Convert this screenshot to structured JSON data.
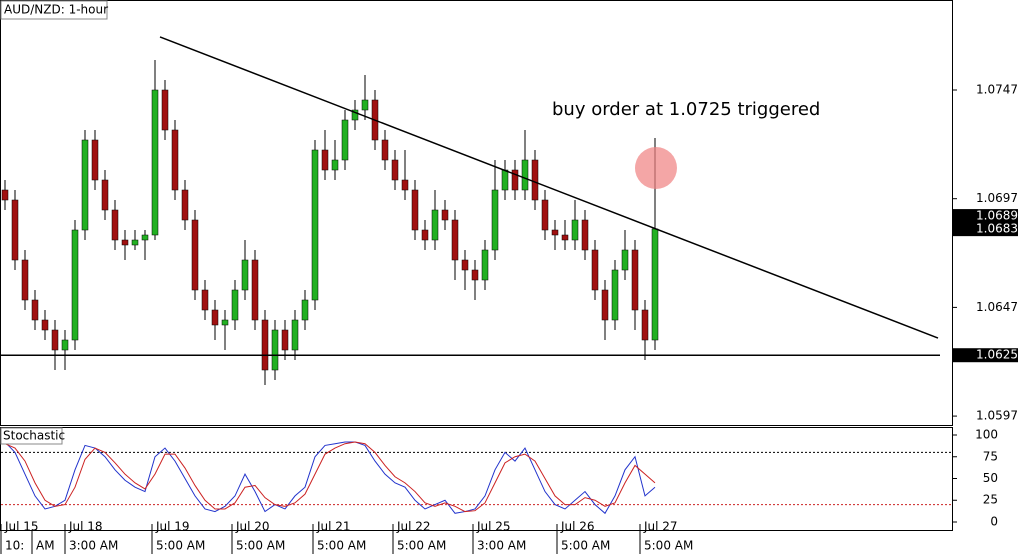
{
  "chart_data": {
    "type": "candlestick",
    "title": "AUD/NZD: 1-hour",
    "annotation": "buy order at 1.0725 triggered",
    "up_color": "#22b022",
    "down_color": "#a01010",
    "xlim": [
      -0.5,
      94.7
    ],
    "ylim": [
      1.05929,
      1.07884
    ],
    "yticks": [
      1.0747,
      1.0697,
      1.0647,
      1.0597
    ],
    "ohlc": [
      [
        1.0701,
        1.07056,
        1.06918,
        1.06964
      ],
      [
        1.06964,
        1.0701,
        1.06642,
        1.06688
      ],
      [
        1.06688,
        1.06734,
        1.06458,
        1.06504
      ],
      [
        1.06504,
        1.0655,
        1.06366,
        1.06412
      ],
      [
        1.06412,
        1.06458,
        1.0632,
        1.06366
      ],
      [
        1.06366,
        1.06412,
        1.06182,
        1.06274
      ],
      [
        1.06274,
        1.06366,
        1.06182,
        1.0632
      ],
      [
        1.0632,
        1.06872,
        1.06274,
        1.06826
      ],
      [
        1.06826,
        1.07286,
        1.0678,
        1.0724
      ],
      [
        1.0724,
        1.07286,
        1.0701,
        1.07056
      ],
      [
        1.07056,
        1.07102,
        1.06872,
        1.06918
      ],
      [
        1.06918,
        1.06964,
        1.06734,
        1.0678
      ],
      [
        1.0678,
        1.06826,
        1.06688,
        1.06757
      ],
      [
        1.06757,
        1.06826,
        1.06734,
        1.0678
      ],
      [
        1.0678,
        1.06826,
        1.06688,
        1.06803
      ],
      [
        1.06803,
        1.07608,
        1.0678,
        1.0747
      ],
      [
        1.0747,
        1.07516,
        1.0724,
        1.07286
      ],
      [
        1.07286,
        1.07332,
        1.06964,
        1.0701
      ],
      [
        1.0701,
        1.07056,
        1.06826,
        1.06872
      ],
      [
        1.06872,
        1.06918,
        1.06504,
        1.0655
      ],
      [
        1.0655,
        1.06596,
        1.06412,
        1.06458
      ],
      [
        1.06458,
        1.06504,
        1.0632,
        1.06389
      ],
      [
        1.06389,
        1.06458,
        1.06274,
        1.06412
      ],
      [
        1.06412,
        1.06596,
        1.06366,
        1.0655
      ],
      [
        1.0655,
        1.0678,
        1.06504,
        1.06688
      ],
      [
        1.06688,
        1.06734,
        1.06366,
        1.06412
      ],
      [
        1.06412,
        1.06458,
        1.06113,
        1.06182
      ],
      [
        1.06182,
        1.06412,
        1.06136,
        1.06366
      ],
      [
        1.06366,
        1.06412,
        1.06228,
        1.06274
      ],
      [
        1.06274,
        1.06458,
        1.06228,
        1.06412
      ],
      [
        1.06412,
        1.0655,
        1.06366,
        1.06504
      ],
      [
        1.06504,
        1.0724,
        1.06458,
        1.07194
      ],
      [
        1.07194,
        1.07286,
        1.07056,
        1.07102
      ],
      [
        1.07102,
        1.0724,
        1.07056,
        1.07148
      ],
      [
        1.07148,
        1.07378,
        1.07102,
        1.07332
      ],
      [
        1.07332,
        1.07424,
        1.07286,
        1.07378
      ],
      [
        1.07378,
        1.07539,
        1.07332,
        1.07424
      ],
      [
        1.07424,
        1.0747,
        1.07194,
        1.0724
      ],
      [
        1.0724,
        1.07286,
        1.07102,
        1.07148
      ],
      [
        1.07148,
        1.07194,
        1.0701,
        1.07056
      ],
      [
        1.07056,
        1.07194,
        1.06964,
        1.0701
      ],
      [
        1.0701,
        1.07056,
        1.0678,
        1.06826
      ],
      [
        1.06826,
        1.06872,
        1.06734,
        1.0678
      ],
      [
        1.0678,
        1.0701,
        1.06734,
        1.06918
      ],
      [
        1.06918,
        1.06964,
        1.06826,
        1.06872
      ],
      [
        1.06872,
        1.06918,
        1.06596,
        1.06688
      ],
      [
        1.06688,
        1.06734,
        1.0655,
        1.06642
      ],
      [
        1.06642,
        1.06688,
        1.06504,
        1.06596
      ],
      [
        1.06596,
        1.0678,
        1.0655,
        1.06734
      ],
      [
        1.06734,
        1.07148,
        1.06688,
        1.0701
      ],
      [
        1.0701,
        1.07148,
        1.06964,
        1.07102
      ],
      [
        1.07102,
        1.07148,
        1.06964,
        1.0701
      ],
      [
        1.0701,
        1.07286,
        1.06964,
        1.07148
      ],
      [
        1.07148,
        1.07194,
        1.06918,
        1.06964
      ],
      [
        1.06964,
        1.0701,
        1.0678,
        1.06826
      ],
      [
        1.06826,
        1.06872,
        1.06734,
        1.06803
      ],
      [
        1.06803,
        1.06872,
        1.06734,
        1.0678
      ],
      [
        1.0678,
        1.06964,
        1.06734,
        1.06872
      ],
      [
        1.06872,
        1.06918,
        1.06688,
        1.06734
      ],
      [
        1.06734,
        1.0678,
        1.06504,
        1.0655
      ],
      [
        1.0655,
        1.06596,
        1.0632,
        1.06412
      ],
      [
        1.06412,
        1.06688,
        1.06366,
        1.06642
      ],
      [
        1.06642,
        1.06826,
        1.06596,
        1.06734
      ],
      [
        1.06734,
        1.0678,
        1.06366,
        1.06458
      ],
      [
        1.06458,
        1.06504,
        1.06228,
        1.0632
      ],
      [
        1.0632,
        1.07249,
        1.06274,
        1.06831
      ]
    ],
    "support_line": 1.0625,
    "trendline": {
      "x": [
        15.5,
        93.3
      ],
      "y": [
        1.07714,
        1.06329
      ]
    },
    "price_markers": [
      1.0689,
      1.0683,
      1.0625
    ],
    "date_ticks": [
      {
        "value": -0.5,
        "label": "Jul 15"
      },
      {
        "value": 6,
        "label": "Jul 18"
      },
      {
        "value": 14.7,
        "label": "Jul 19"
      },
      {
        "value": 22.7,
        "label": "Jul 20"
      },
      {
        "value": 30.8,
        "label": "Jul 21"
      },
      {
        "value": 38.8,
        "label": "Jul 22"
      },
      {
        "value": 46.8,
        "label": "Jul 25"
      },
      {
        "value": 55.2,
        "label": "Jul 26"
      },
      {
        "value": 63.5,
        "label": "Jul 27"
      }
    ],
    "time_ticks": [
      {
        "value": -0.5,
        "label": "10:"
      },
      {
        "value": 2.7,
        "label": "AM"
      },
      {
        "value": 6,
        "label": "3:00 AM"
      },
      {
        "value": 14.7,
        "label": "5:00 AM"
      },
      {
        "value": 22.7,
        "label": "5:00 AM"
      },
      {
        "value": 30.8,
        "label": "5:00 AM"
      },
      {
        "value": 38.8,
        "label": "5:00 AM"
      },
      {
        "value": 46.8,
        "label": "3:00 AM"
      },
      {
        "value": 55.2,
        "label": "5:00 AM"
      },
      {
        "value": 63.5,
        "label": "5:00 AM"
      }
    ],
    "stochastic": {
      "title": "Stochastic",
      "ylim": [
        -9.2,
        109.2
      ],
      "yticks": [
        100,
        75,
        50,
        25,
        0
      ],
      "levels": [
        80,
        20
      ],
      "series": [
        {
          "color": "#2233cc",
          "values": [
            92,
            80,
            55,
            30,
            15,
            18,
            25,
            60,
            88,
            85,
            75,
            60,
            48,
            40,
            35,
            75,
            85,
            70,
            50,
            30,
            15,
            12,
            18,
            30,
            55,
            35,
            12,
            20,
            15,
            30,
            40,
            75,
            88,
            90,
            92,
            92,
            88,
            70,
            55,
            45,
            40,
            25,
            15,
            20,
            25,
            10,
            12,
            15,
            30,
            60,
            80,
            70,
            85,
            60,
            35,
            20,
            15,
            25,
            35,
            20,
            10,
            30,
            60,
            75,
            30,
            40
          ]
        },
        {
          "color": "#cc2222",
          "values": [
            90,
            85,
            70,
            45,
            25,
            18,
            20,
            40,
            72,
            85,
            80,
            68,
            55,
            45,
            38,
            55,
            78,
            78,
            62,
            42,
            25,
            15,
            15,
            22,
            40,
            42,
            28,
            20,
            18,
            22,
            32,
            55,
            78,
            85,
            90,
            92,
            90,
            80,
            65,
            52,
            45,
            35,
            22,
            18,
            22,
            18,
            12,
            13,
            22,
            45,
            68,
            75,
            78,
            70,
            50,
            30,
            20,
            20,
            28,
            25,
            18,
            22,
            45,
            65,
            55,
            45
          ]
        }
      ]
    }
  }
}
